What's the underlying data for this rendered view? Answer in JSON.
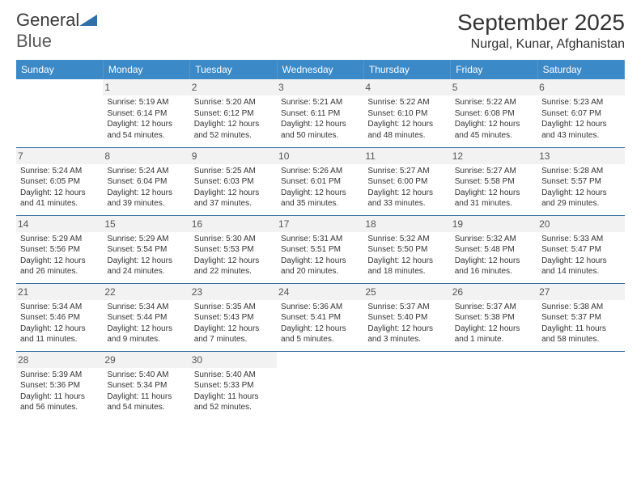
{
  "brand": {
    "part1": "General",
    "part2": "Blue",
    "logo_color": "#2f6fa8"
  },
  "title": "September 2025",
  "location": "Nurgal, Kunar, Afghanistan",
  "colors": {
    "header_bg": "#3b89c7",
    "header_text": "#ffffff",
    "rule": "#3b6ea0",
    "daynum_bg": "#f2f2f2",
    "text": "#333333"
  },
  "headers": [
    "Sunday",
    "Monday",
    "Tuesday",
    "Wednesday",
    "Thursday",
    "Friday",
    "Saturday"
  ],
  "weeks": [
    [
      {
        "n": "",
        "sr": "",
        "ss": "",
        "d1": "",
        "d2": ""
      },
      {
        "n": "1",
        "sr": "Sunrise: 5:19 AM",
        "ss": "Sunset: 6:14 PM",
        "d1": "Daylight: 12 hours",
        "d2": "and 54 minutes."
      },
      {
        "n": "2",
        "sr": "Sunrise: 5:20 AM",
        "ss": "Sunset: 6:12 PM",
        "d1": "Daylight: 12 hours",
        "d2": "and 52 minutes."
      },
      {
        "n": "3",
        "sr": "Sunrise: 5:21 AM",
        "ss": "Sunset: 6:11 PM",
        "d1": "Daylight: 12 hours",
        "d2": "and 50 minutes."
      },
      {
        "n": "4",
        "sr": "Sunrise: 5:22 AM",
        "ss": "Sunset: 6:10 PM",
        "d1": "Daylight: 12 hours",
        "d2": "and 48 minutes."
      },
      {
        "n": "5",
        "sr": "Sunrise: 5:22 AM",
        "ss": "Sunset: 6:08 PM",
        "d1": "Daylight: 12 hours",
        "d2": "and 45 minutes."
      },
      {
        "n": "6",
        "sr": "Sunrise: 5:23 AM",
        "ss": "Sunset: 6:07 PM",
        "d1": "Daylight: 12 hours",
        "d2": "and 43 minutes."
      }
    ],
    [
      {
        "n": "7",
        "sr": "Sunrise: 5:24 AM",
        "ss": "Sunset: 6:05 PM",
        "d1": "Daylight: 12 hours",
        "d2": "and 41 minutes."
      },
      {
        "n": "8",
        "sr": "Sunrise: 5:24 AM",
        "ss": "Sunset: 6:04 PM",
        "d1": "Daylight: 12 hours",
        "d2": "and 39 minutes."
      },
      {
        "n": "9",
        "sr": "Sunrise: 5:25 AM",
        "ss": "Sunset: 6:03 PM",
        "d1": "Daylight: 12 hours",
        "d2": "and 37 minutes."
      },
      {
        "n": "10",
        "sr": "Sunrise: 5:26 AM",
        "ss": "Sunset: 6:01 PM",
        "d1": "Daylight: 12 hours",
        "d2": "and 35 minutes."
      },
      {
        "n": "11",
        "sr": "Sunrise: 5:27 AM",
        "ss": "Sunset: 6:00 PM",
        "d1": "Daylight: 12 hours",
        "d2": "and 33 minutes."
      },
      {
        "n": "12",
        "sr": "Sunrise: 5:27 AM",
        "ss": "Sunset: 5:58 PM",
        "d1": "Daylight: 12 hours",
        "d2": "and 31 minutes."
      },
      {
        "n": "13",
        "sr": "Sunrise: 5:28 AM",
        "ss": "Sunset: 5:57 PM",
        "d1": "Daylight: 12 hours",
        "d2": "and 29 minutes."
      }
    ],
    [
      {
        "n": "14",
        "sr": "Sunrise: 5:29 AM",
        "ss": "Sunset: 5:56 PM",
        "d1": "Daylight: 12 hours",
        "d2": "and 26 minutes."
      },
      {
        "n": "15",
        "sr": "Sunrise: 5:29 AM",
        "ss": "Sunset: 5:54 PM",
        "d1": "Daylight: 12 hours",
        "d2": "and 24 minutes."
      },
      {
        "n": "16",
        "sr": "Sunrise: 5:30 AM",
        "ss": "Sunset: 5:53 PM",
        "d1": "Daylight: 12 hours",
        "d2": "and 22 minutes."
      },
      {
        "n": "17",
        "sr": "Sunrise: 5:31 AM",
        "ss": "Sunset: 5:51 PM",
        "d1": "Daylight: 12 hours",
        "d2": "and 20 minutes."
      },
      {
        "n": "18",
        "sr": "Sunrise: 5:32 AM",
        "ss": "Sunset: 5:50 PM",
        "d1": "Daylight: 12 hours",
        "d2": "and 18 minutes."
      },
      {
        "n": "19",
        "sr": "Sunrise: 5:32 AM",
        "ss": "Sunset: 5:48 PM",
        "d1": "Daylight: 12 hours",
        "d2": "and 16 minutes."
      },
      {
        "n": "20",
        "sr": "Sunrise: 5:33 AM",
        "ss": "Sunset: 5:47 PM",
        "d1": "Daylight: 12 hours",
        "d2": "and 14 minutes."
      }
    ],
    [
      {
        "n": "21",
        "sr": "Sunrise: 5:34 AM",
        "ss": "Sunset: 5:46 PM",
        "d1": "Daylight: 12 hours",
        "d2": "and 11 minutes."
      },
      {
        "n": "22",
        "sr": "Sunrise: 5:34 AM",
        "ss": "Sunset: 5:44 PM",
        "d1": "Daylight: 12 hours",
        "d2": "and 9 minutes."
      },
      {
        "n": "23",
        "sr": "Sunrise: 5:35 AM",
        "ss": "Sunset: 5:43 PM",
        "d1": "Daylight: 12 hours",
        "d2": "and 7 minutes."
      },
      {
        "n": "24",
        "sr": "Sunrise: 5:36 AM",
        "ss": "Sunset: 5:41 PM",
        "d1": "Daylight: 12 hours",
        "d2": "and 5 minutes."
      },
      {
        "n": "25",
        "sr": "Sunrise: 5:37 AM",
        "ss": "Sunset: 5:40 PM",
        "d1": "Daylight: 12 hours",
        "d2": "and 3 minutes."
      },
      {
        "n": "26",
        "sr": "Sunrise: 5:37 AM",
        "ss": "Sunset: 5:38 PM",
        "d1": "Daylight: 12 hours",
        "d2": "and 1 minute."
      },
      {
        "n": "27",
        "sr": "Sunrise: 5:38 AM",
        "ss": "Sunset: 5:37 PM",
        "d1": "Daylight: 11 hours",
        "d2": "and 58 minutes."
      }
    ],
    [
      {
        "n": "28",
        "sr": "Sunrise: 5:39 AM",
        "ss": "Sunset: 5:36 PM",
        "d1": "Daylight: 11 hours",
        "d2": "and 56 minutes."
      },
      {
        "n": "29",
        "sr": "Sunrise: 5:40 AM",
        "ss": "Sunset: 5:34 PM",
        "d1": "Daylight: 11 hours",
        "d2": "and 54 minutes."
      },
      {
        "n": "30",
        "sr": "Sunrise: 5:40 AM",
        "ss": "Sunset: 5:33 PM",
        "d1": "Daylight: 11 hours",
        "d2": "and 52 minutes."
      },
      {
        "n": "",
        "sr": "",
        "ss": "",
        "d1": "",
        "d2": ""
      },
      {
        "n": "",
        "sr": "",
        "ss": "",
        "d1": "",
        "d2": ""
      },
      {
        "n": "",
        "sr": "",
        "ss": "",
        "d1": "",
        "d2": ""
      },
      {
        "n": "",
        "sr": "",
        "ss": "",
        "d1": "",
        "d2": ""
      }
    ]
  ]
}
